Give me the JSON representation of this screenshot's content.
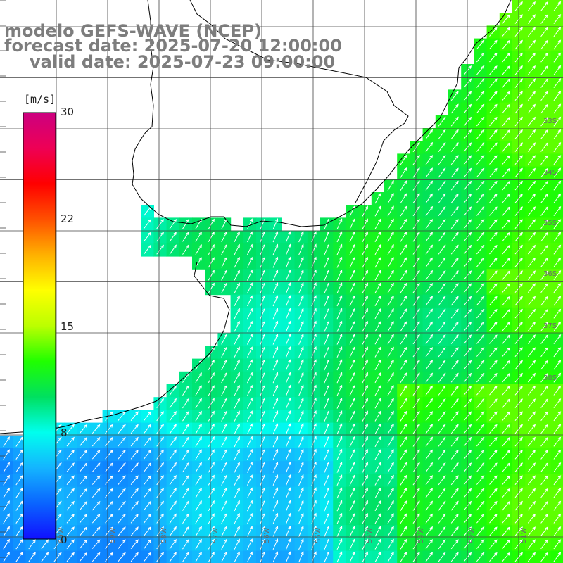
{
  "titles": {
    "line1": "modelo GEFS-WAVE (NCEP)",
    "line2": "forecast date: 2025-07-20 12:00:00",
    "line3": "valid date: 2025-07-23 09:00:00"
  },
  "colorbar": {
    "unit": "[m/s]",
    "min": 0,
    "max": 30,
    "ticks": [
      "30",
      "22",
      "15",
      "8",
      "0"
    ],
    "tick_values": [
      30,
      22,
      15,
      8,
      0
    ],
    "colors": [
      "#1010ff",
      "#0a64ff",
      "#14b4ff",
      "#00ffee",
      "#00e060",
      "#20ff00",
      "#bbff00",
      "#ffff00",
      "#ffb000",
      "#ff5000",
      "#ff0000",
      "#ee0055",
      "#cc0080"
    ]
  },
  "map": {
    "variable": "wind speed and direction",
    "field_colors": {
      "land": "#ffffff",
      "grid": "#444444",
      "coast": "#000000",
      "arrow": "#ffffff"
    },
    "lat_labels": [
      "33S",
      "34S",
      "35S",
      "36S",
      "37S",
      "38S"
    ],
    "lon_labels": [
      "60W",
      "59W",
      "58W",
      "57W",
      "56W",
      "55W",
      "54W",
      "53W",
      "52W",
      "51W"
    ]
  }
}
